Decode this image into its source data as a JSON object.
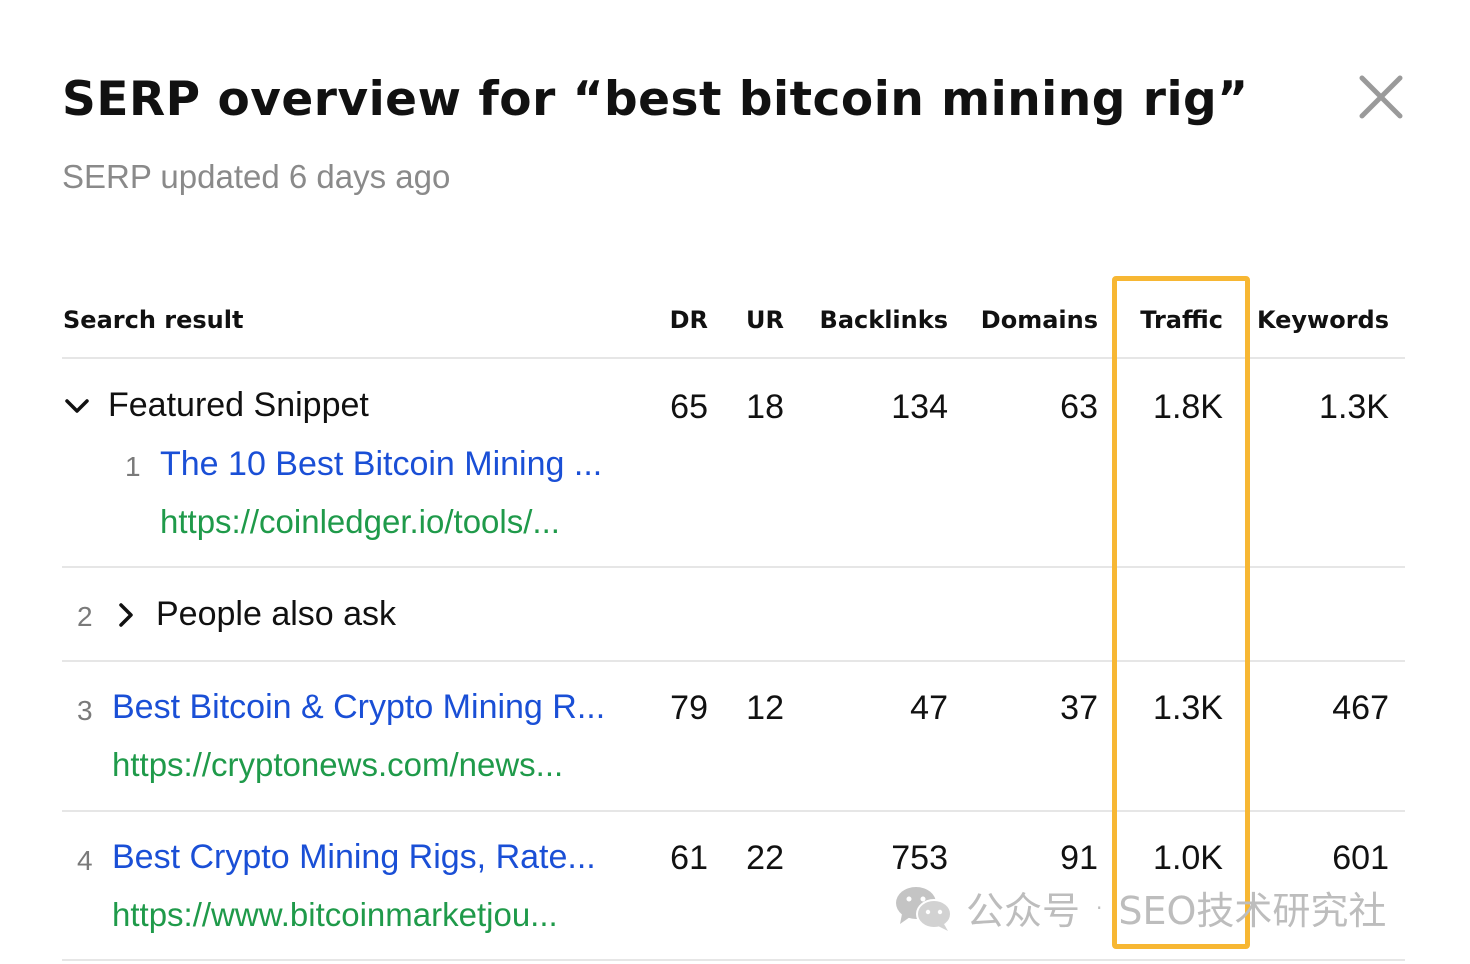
{
  "dialog": {
    "title": "SERP overview for “best bitcoin mining rig”",
    "subtitle": "SERP updated 6 days ago",
    "close_icon": "close-icon"
  },
  "table": {
    "columns": {
      "search_result": "Search result",
      "dr": "DR",
      "ur": "UR",
      "backlinks": "Backlinks",
      "domains": "Domains",
      "traffic": "Traffic",
      "keywords": "Keywords"
    },
    "rows": [
      {
        "label": "Featured Snippet",
        "expanded": true,
        "sub_rank": "1",
        "title": "The 10 Best Bitcoin Mining ...",
        "url": "https://coinledger.io/tools/...",
        "dr": "65",
        "ur": "18",
        "backlinks": "134",
        "domains": "63",
        "traffic": "1.8K",
        "keywords": "1.3K"
      },
      {
        "rank": "2",
        "label": "People also ask",
        "expanded": false
      },
      {
        "rank": "3",
        "title": "Best Bitcoin & Crypto Mining R...",
        "url": "https://cryptonews.com/news...",
        "dr": "79",
        "ur": "12",
        "backlinks": "47",
        "domains": "37",
        "traffic": "1.3K",
        "keywords": "467"
      },
      {
        "rank": "4",
        "title": "Best Crypto Mining Rigs, Rate...",
        "url": "https://www.bitcoinmarketjou...",
        "dr": "61",
        "ur": "22",
        "backlinks": "753",
        "domains": "91",
        "traffic": "1.0K",
        "keywords": "601"
      }
    ]
  },
  "highlight": {
    "column": "traffic",
    "color": "#f7b733"
  },
  "watermark": {
    "icon": "wechat-icon",
    "source": "公众号",
    "separator": "·",
    "account": "SEO技术研究社"
  },
  "colors": {
    "link": "#1a4fd6",
    "url": "#1f9a4a",
    "muted": "#8a8a8a"
  }
}
